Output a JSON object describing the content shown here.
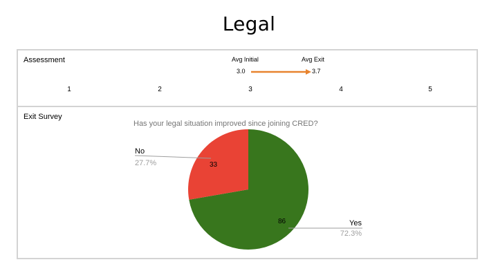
{
  "slide": {
    "title": "Legal"
  },
  "assessment": {
    "label": "Assessment",
    "avg_initial_label": "Avg Initial",
    "avg_initial_value": "3.0",
    "avg_exit_label": "Avg Exit",
    "avg_exit_value": "3.7",
    "scale": [
      "1",
      "2",
      "3",
      "4",
      "5"
    ],
    "arrow_color": "#e8832e"
  },
  "exit_survey": {
    "label": "Exit Survey"
  },
  "chart_data": {
    "type": "pie",
    "title": "Has your legal situation improved since joining CRED?",
    "slices": [
      {
        "label": "No",
        "value": 33,
        "percent": "27.7%",
        "color": "#e94335"
      },
      {
        "label": "Yes",
        "value": 86,
        "percent": "72.3%",
        "color": "#38761d"
      }
    ]
  }
}
